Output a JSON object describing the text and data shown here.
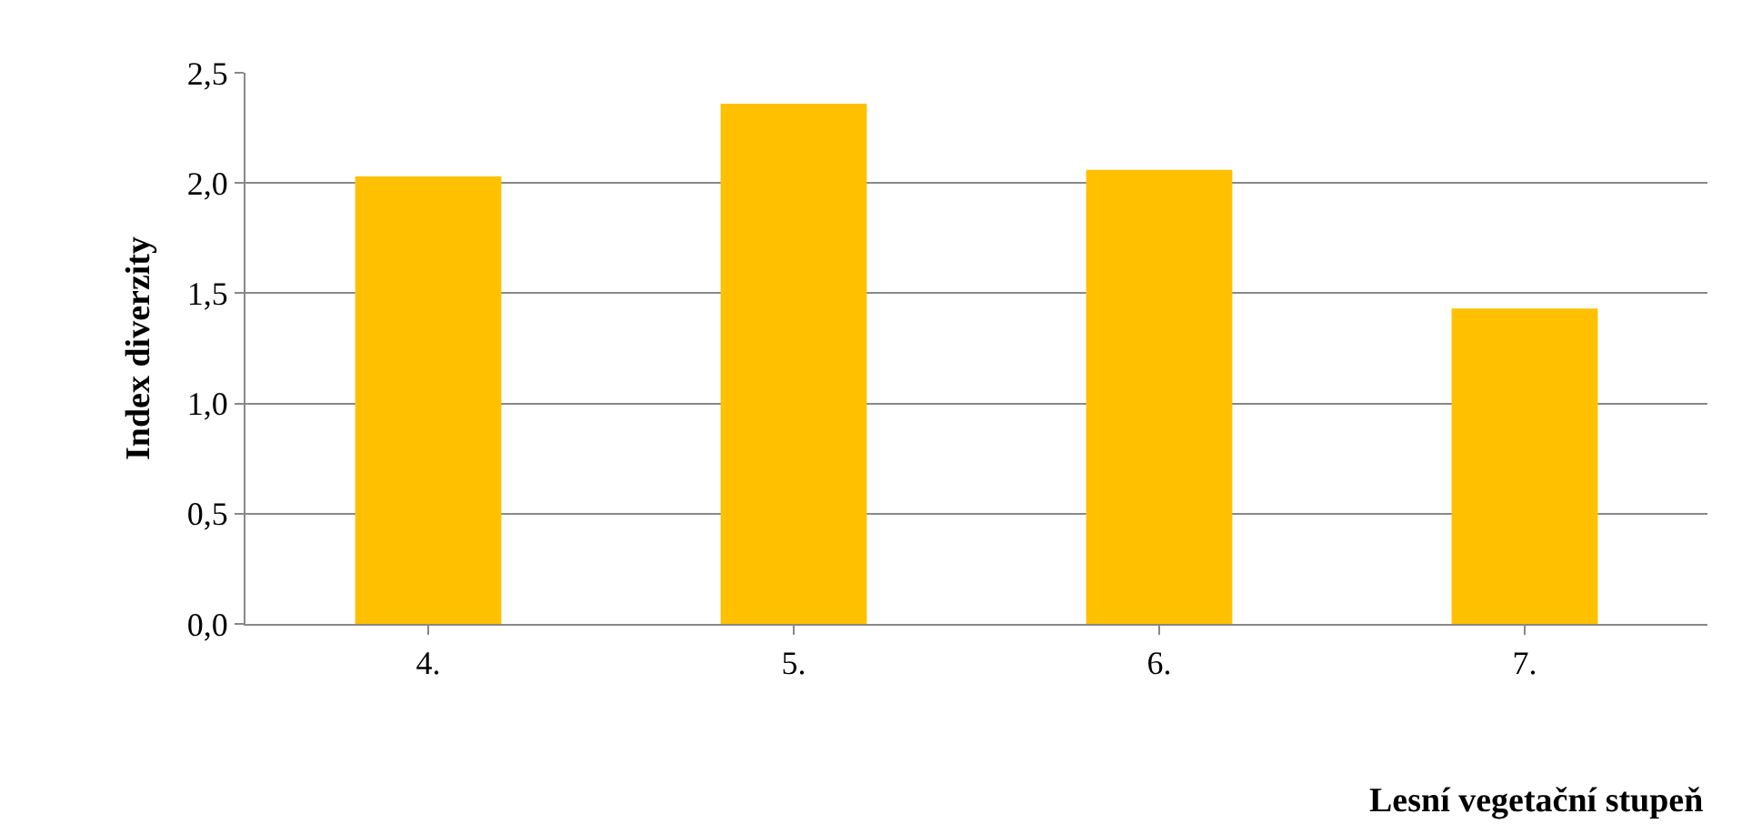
{
  "chart_data": {
    "type": "bar",
    "xlabel": "Lesní vegetační stupeň",
    "ylabel": "Index diverzity",
    "categories": [
      "4.",
      "5.",
      "6.",
      "7."
    ],
    "values": [
      2.03,
      2.36,
      2.06,
      1.43
    ],
    "color": "#ffc000",
    "ylim": [
      0,
      2.5
    ],
    "yticks": [
      {
        "value": 0,
        "label": "0,0"
      },
      {
        "value": 0.5,
        "label": "0,5"
      },
      {
        "value": 1,
        "label": "1,0"
      },
      {
        "value": 1.5,
        "label": "1,5"
      },
      {
        "value": 2,
        "label": "2,0"
      },
      {
        "value": 2.5,
        "label": "2,5"
      }
    ],
    "grid": "y"
  }
}
